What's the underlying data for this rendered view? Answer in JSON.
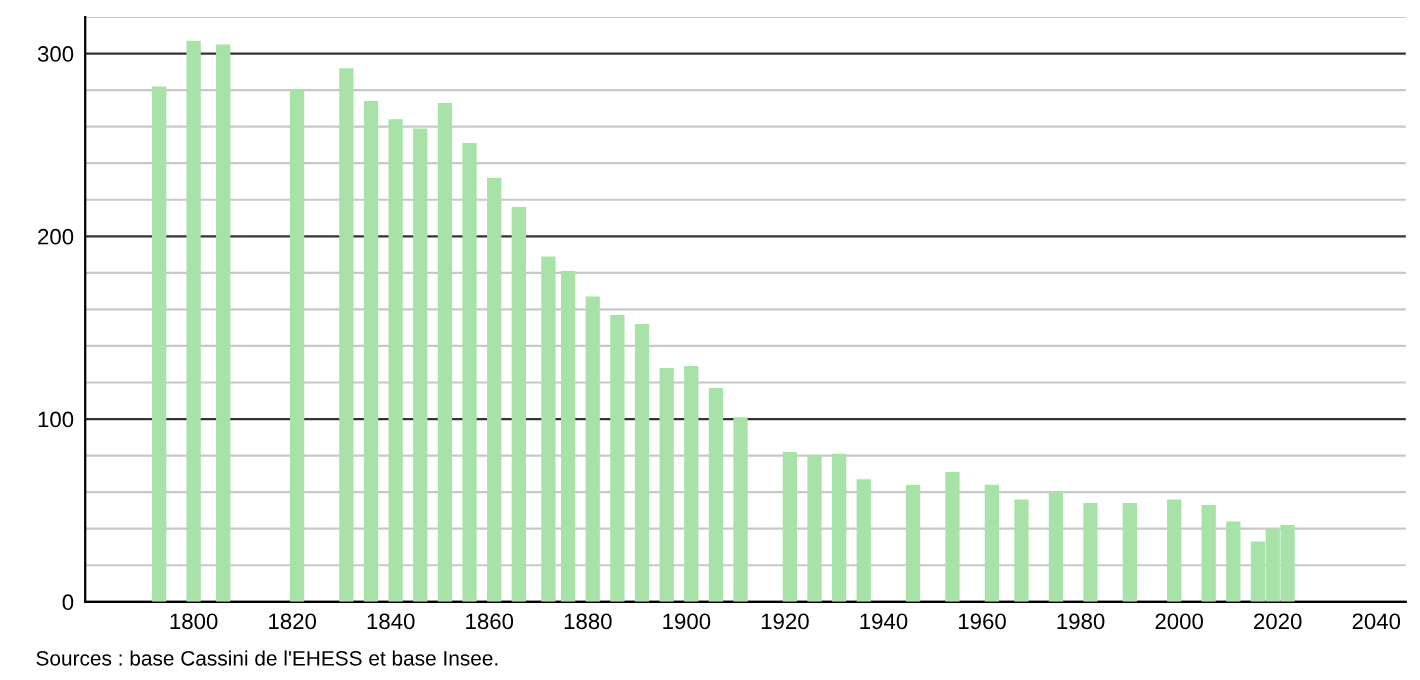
{
  "chart_data": {
    "type": "bar",
    "x": [
      1793,
      1800,
      1806,
      1821,
      1831,
      1836,
      1841,
      1846,
      1851,
      1856,
      1861,
      1866,
      1872,
      1876,
      1881,
      1886,
      1891,
      1896,
      1901,
      1906,
      1911,
      1921,
      1926,
      1931,
      1936,
      1946,
      1954,
      1962,
      1968,
      1975,
      1982,
      1990,
      1999,
      2006,
      2011,
      2016,
      2019,
      2022
    ],
    "values": [
      282,
      307,
      305,
      280,
      292,
      274,
      264,
      259,
      273,
      251,
      232,
      216,
      189,
      181,
      167,
      157,
      152,
      128,
      129,
      117,
      101,
      82,
      80,
      81,
      67,
      64,
      71,
      64,
      56,
      60,
      54,
      54,
      56,
      53,
      44,
      33,
      40,
      42
    ],
    "color": "#a8e2a8",
    "xlim": [
      1778,
      2046
    ],
    "xticks": [
      1800,
      1820,
      1840,
      1860,
      1880,
      1900,
      1920,
      1940,
      1960,
      1980,
      2000,
      2020,
      2040
    ],
    "ylim": [
      0,
      320
    ],
    "yticks": [
      0,
      {
        "value": 20,
        "label": null
      },
      {
        "value": 40,
        "label": null
      },
      {
        "value": 60,
        "label": null
      },
      {
        "value": 80,
        "label": null
      },
      100,
      {
        "value": 120,
        "label": null
      },
      {
        "value": 140,
        "label": null
      },
      {
        "value": 160,
        "label": null
      },
      {
        "value": 180,
        "label": null
      },
      200,
      {
        "value": 220,
        "label": null
      },
      {
        "value": 240,
        "label": null
      },
      {
        "value": 260,
        "label": null
      },
      {
        "value": 280,
        "label": null
      },
      300,
      {
        "value": 320,
        "label": null
      }
    ],
    "grid": "y",
    "legend": false,
    "annotations": [
      "Sources : base Cassini de l'EHESS et base Insee."
    ]
  }
}
